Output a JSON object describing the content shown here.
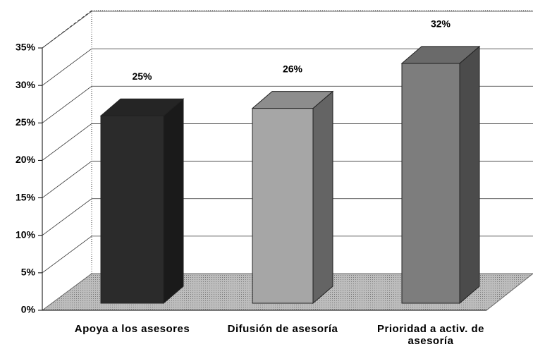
{
  "chart_data": {
    "type": "bar3d",
    "categories": [
      "Apoya a los asesores",
      "Difusión de asesoría",
      "Prioridad a activ. de asesoría"
    ],
    "values": [
      25,
      26,
      32
    ],
    "value_labels": [
      "25%",
      "26%",
      "32%"
    ],
    "colors": [
      "#2b2b2b",
      "#a6a6a6",
      "#7d7d7d"
    ],
    "ylim": [
      0,
      35
    ],
    "yticks": [
      {
        "value": 0,
        "label": "0%"
      },
      {
        "value": 5,
        "label": "5%"
      },
      {
        "value": 10,
        "label": "10%"
      },
      {
        "value": 15,
        "label": "15%"
      },
      {
        "value": 20,
        "label": "20%"
      },
      {
        "value": 25,
        "label": "25%"
      },
      {
        "value": 30,
        "label": "30%"
      },
      {
        "value": 35,
        "label": "35%"
      }
    ],
    "grid": true
  }
}
